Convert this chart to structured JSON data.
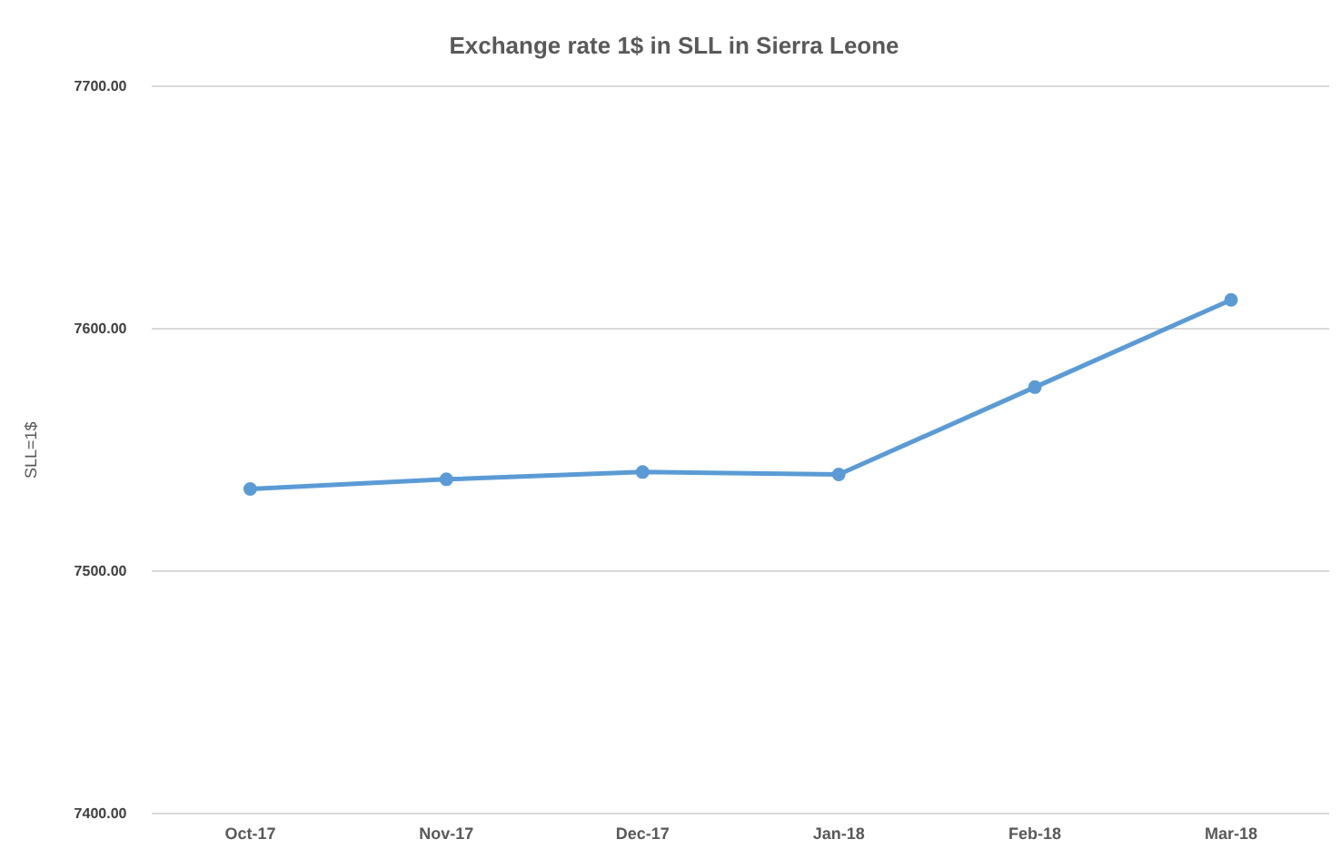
{
  "chart_data": {
    "type": "line",
    "title": "Exchange rate 1$ in SLL in Sierra Leone",
    "ylabel": "SLL=1$",
    "categories": [
      "Oct-17",
      "Nov-17",
      "Dec-17",
      "Jan-18",
      "Feb-18",
      "Mar-18"
    ],
    "series": [
      {
        "color": "#5b9bd5",
        "values": [
          7534,
          7538,
          7541,
          7540,
          7576,
          7612
        ]
      }
    ],
    "ylim": [
      7400,
      7700
    ],
    "yticks": [
      {
        "value": 7400,
        "label": "7400.00"
      },
      {
        "value": 7500,
        "label": "7500.00"
      },
      {
        "value": 7600,
        "label": "7600.00"
      },
      {
        "value": 7700,
        "label": "7700.00"
      }
    ],
    "grid": "y",
    "legend": false,
    "marker": "circle",
    "line_style": "solid"
  }
}
